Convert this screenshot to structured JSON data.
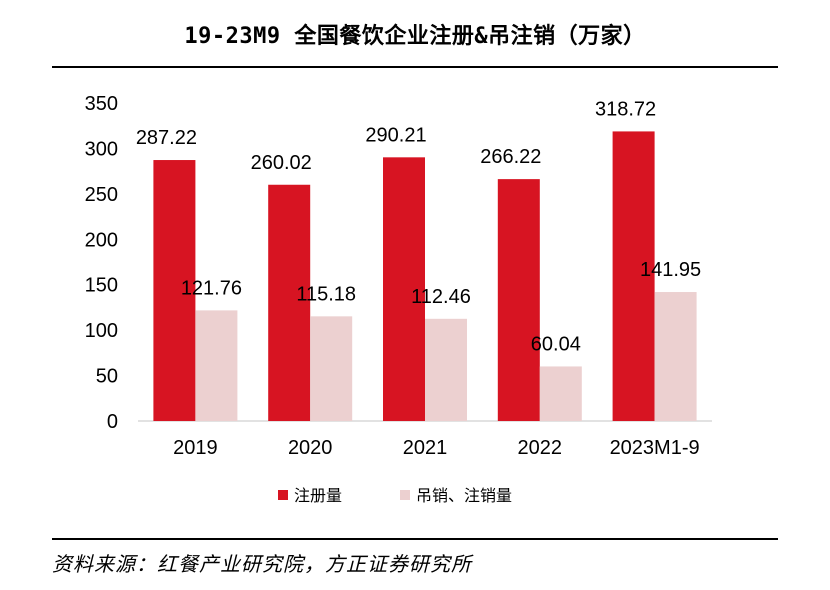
{
  "title": "19-23M9 全国餐饮企业注册&吊注销（万家）",
  "source": "资料来源：红餐产业研究院，方正证券研究所",
  "colors": {
    "registered": "#d71422",
    "cancelled": "#ecd0d0"
  },
  "chart_data": {
    "type": "bar",
    "title": "19-23M9 全国餐饮企业注册&吊注销（万家）",
    "categories": [
      "2019",
      "2020",
      "2021",
      "2022",
      "2023M1-9"
    ],
    "series": [
      {
        "name": "注册量",
        "values": [
          287.22,
          260.02,
          290.21,
          266.22,
          318.72
        ],
        "labels": [
          "287.22",
          "260.02",
          "290.21",
          "266.22",
          "318.72"
        ]
      },
      {
        "name": "吊销、注销量",
        "values": [
          121.76,
          115.18,
          112.46,
          60.04,
          141.95
        ],
        "labels": [
          "121.76",
          "115.18",
          "112.46",
          "60.04",
          "141.95"
        ]
      }
    ],
    "yticks": [
      "0",
      "50",
      "100",
      "150",
      "200",
      "250",
      "300",
      "350"
    ],
    "ylim": [
      0,
      350
    ],
    "xlabel": "",
    "ylabel": "",
    "grid": false,
    "legend_position": "bottom"
  }
}
